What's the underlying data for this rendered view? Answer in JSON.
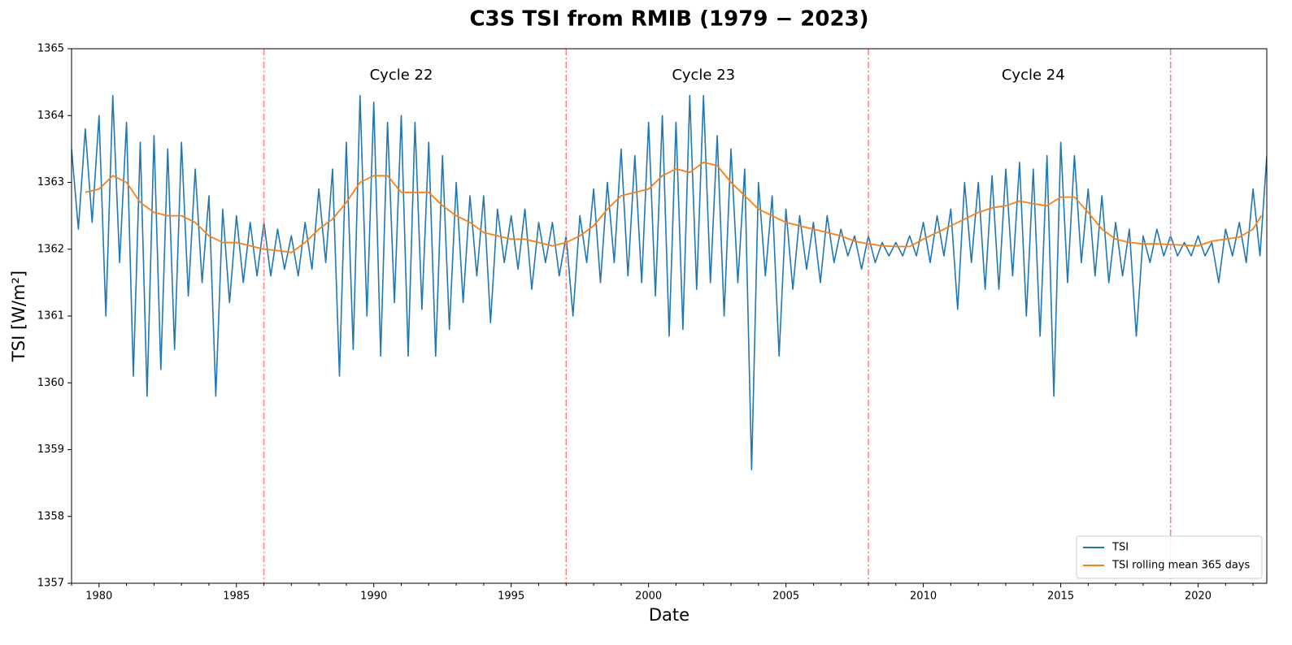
{
  "chart_data": {
    "type": "line",
    "title": "C3S TSI from RMIB (1979 − 2023)",
    "x_label": "Date",
    "y_label": "TSI [W/m²]",
    "xlim": [
      1979.0,
      2022.5
    ],
    "ylim": [
      1357,
      1365
    ],
    "xticks": [
      1980,
      1985,
      1990,
      1995,
      2000,
      2005,
      2010,
      2015,
      2020
    ],
    "xminorticks": [
      1979,
      1981,
      1982,
      1983,
      1984,
      1986,
      1987,
      1988,
      1989,
      1991,
      1992,
      1993,
      1994,
      1996,
      1997,
      1998,
      1999,
      2001,
      2002,
      2003,
      2004,
      2006,
      2007,
      2008,
      2009,
      2011,
      2012,
      2013,
      2014,
      2016,
      2017,
      2018,
      2019,
      2021,
      2022
    ],
    "yticks": [
      1357,
      1358,
      1359,
      1360,
      1361,
      1362,
      1363,
      1364,
      1365
    ],
    "legend_position": "lower right",
    "vlines": [
      1986,
      1997,
      2008,
      2019
    ],
    "vline_color": "#ff7f7f",
    "annotations": [
      {
        "text": "Cycle 22",
        "x": 1991,
        "y": 1364.6
      },
      {
        "text": "Cycle 23",
        "x": 2002,
        "y": 1364.6
      },
      {
        "text": "Cycle 24",
        "x": 2014,
        "y": 1364.6
      }
    ],
    "series": [
      {
        "name": "TSI",
        "color": "#1f77b4",
        "x": [
          1979,
          1979.25,
          1979.5,
          1979.75,
          1980,
          1980.25,
          1980.5,
          1980.75,
          1981,
          1981.25,
          1981.5,
          1981.75,
          1982,
          1982.25,
          1982.5,
          1982.75,
          1983,
          1983.25,
          1983.5,
          1983.75,
          1984,
          1984.25,
          1984.5,
          1984.75,
          1985,
          1985.25,
          1985.5,
          1985.75,
          1986,
          1986.25,
          1986.5,
          1986.75,
          1987,
          1987.25,
          1987.5,
          1987.75,
          1988,
          1988.25,
          1988.5,
          1988.75,
          1989,
          1989.25,
          1989.5,
          1989.75,
          1990,
          1990.25,
          1990.5,
          1990.75,
          1991,
          1991.25,
          1991.5,
          1991.75,
          1992,
          1992.25,
          1992.5,
          1992.75,
          1993,
          1993.25,
          1993.5,
          1993.75,
          1994,
          1994.25,
          1994.5,
          1994.75,
          1995,
          1995.25,
          1995.5,
          1995.75,
          1996,
          1996.25,
          1996.5,
          1996.75,
          1997,
          1997.25,
          1997.5,
          1997.75,
          1998,
          1998.25,
          1998.5,
          1998.75,
          1999,
          1999.25,
          1999.5,
          1999.75,
          2000,
          2000.25,
          2000.5,
          2000.75,
          2001,
          2001.25,
          2001.5,
          2001.75,
          2002,
          2002.25,
          2002.5,
          2002.75,
          2003,
          2003.25,
          2003.5,
          2003.75,
          2004,
          2004.25,
          2004.5,
          2004.75,
          2005,
          2005.25,
          2005.5,
          2005.75,
          2006,
          2006.25,
          2006.5,
          2006.75,
          2007,
          2007.25,
          2007.5,
          2007.75,
          2008,
          2008.25,
          2008.5,
          2008.75,
          2009,
          2009.25,
          2009.5,
          2009.75,
          2010,
          2010.25,
          2010.5,
          2010.75,
          2011,
          2011.25,
          2011.5,
          2011.75,
          2012,
          2012.25,
          2012.5,
          2012.75,
          2013,
          2013.25,
          2013.5,
          2013.75,
          2014,
          2014.25,
          2014.5,
          2014.75,
          2015,
          2015.25,
          2015.5,
          2015.75,
          2016,
          2016.25,
          2016.5,
          2016.75,
          2017,
          2017.25,
          2017.5,
          2017.75,
          2018,
          2018.25,
          2018.5,
          2018.75,
          2019,
          2019.25,
          2019.5,
          2019.75,
          2020,
          2020.25,
          2020.5,
          2020.75,
          2021,
          2021.25,
          2021.5,
          2021.75,
          2022,
          2022.25,
          2022.5
        ],
        "values": [
          1363.5,
          1362.3,
          1363.8,
          1362.4,
          1364.0,
          1361.0,
          1364.3,
          1361.8,
          1363.9,
          1360.1,
          1363.6,
          1359.8,
          1363.7,
          1360.2,
          1363.5,
          1360.5,
          1363.6,
          1361.3,
          1363.2,
          1361.5,
          1362.8,
          1359.8,
          1362.6,
          1361.2,
          1362.5,
          1361.5,
          1362.4,
          1361.6,
          1362.4,
          1361.6,
          1362.3,
          1361.7,
          1362.2,
          1361.6,
          1362.4,
          1361.7,
          1362.9,
          1361.8,
          1363.2,
          1360.1,
          1363.6,
          1360.5,
          1364.3,
          1361.0,
          1364.2,
          1360.4,
          1363.9,
          1361.2,
          1364.0,
          1360.4,
          1363.9,
          1361.1,
          1363.6,
          1360.4,
          1363.4,
          1360.8,
          1363.0,
          1361.2,
          1362.8,
          1361.6,
          1362.8,
          1360.9,
          1362.6,
          1361.8,
          1362.5,
          1361.7,
          1362.6,
          1361.4,
          1362.4,
          1361.8,
          1362.4,
          1361.6,
          1362.2,
          1361.0,
          1362.5,
          1361.8,
          1362.9,
          1361.5,
          1363.0,
          1361.8,
          1363.5,
          1361.6,
          1363.4,
          1361.5,
          1363.9,
          1361.3,
          1364.0,
          1360.7,
          1363.9,
          1360.8,
          1364.3,
          1361.4,
          1364.3,
          1361.5,
          1363.7,
          1361.0,
          1363.5,
          1361.5,
          1363.2,
          1358.7,
          1363.0,
          1361.6,
          1362.8,
          1360.4,
          1362.6,
          1361.4,
          1362.5,
          1361.7,
          1362.4,
          1361.5,
          1362.5,
          1361.8,
          1362.3,
          1361.9,
          1362.2,
          1361.7,
          1362.2,
          1361.8,
          1362.1,
          1361.9,
          1362.1,
          1361.9,
          1362.2,
          1361.9,
          1362.4,
          1361.8,
          1362.5,
          1361.9,
          1362.6,
          1361.1,
          1363.0,
          1361.8,
          1363.0,
          1361.4,
          1363.1,
          1361.4,
          1363.2,
          1361.6,
          1363.3,
          1361.0,
          1363.2,
          1360.7,
          1363.4,
          1359.8,
          1363.6,
          1361.5,
          1363.4,
          1361.8,
          1362.9,
          1361.6,
          1362.8,
          1361.5,
          1362.4,
          1361.6,
          1362.3,
          1360.7,
          1362.2,
          1361.8,
          1362.3,
          1361.9,
          1362.2,
          1361.9,
          1362.1,
          1361.9,
          1362.2,
          1361.9,
          1362.1,
          1361.5,
          1362.3,
          1361.9,
          1362.4,
          1361.8,
          1362.9,
          1361.9,
          1363.4
        ]
      },
      {
        "name": "TSI rolling mean 365 days",
        "color": "#ff7f0e",
        "x": [
          1979.5,
          1980,
          1980.5,
          1981,
          1981.5,
          1982,
          1982.5,
          1983,
          1983.5,
          1984,
          1984.5,
          1985,
          1985.5,
          1986,
          1986.5,
          1987,
          1987.5,
          1988,
          1988.5,
          1989,
          1989.5,
          1990,
          1990.5,
          1991,
          1991.5,
          1992,
          1992.5,
          1993,
          1993.5,
          1994,
          1994.5,
          1995,
          1995.5,
          1996,
          1996.5,
          1997,
          1997.5,
          1998,
          1998.5,
          1999,
          1999.5,
          2000,
          2000.5,
          2001,
          2001.5,
          2002,
          2002.5,
          2003,
          2003.5,
          2004,
          2004.5,
          2005,
          2005.5,
          2006,
          2006.5,
          2007,
          2007.5,
          2008,
          2008.5,
          2009,
          2009.5,
          2010,
          2010.5,
          2011,
          2011.5,
          2012,
          2012.5,
          2013,
          2013.5,
          2014,
          2014.5,
          2015,
          2015.5,
          2016,
          2016.5,
          2017,
          2017.5,
          2018,
          2018.5,
          2019,
          2019.5,
          2020,
          2020.5,
          2021,
          2021.5,
          2022,
          2022.3
        ],
        "values": [
          1362.85,
          1362.9,
          1363.1,
          1363.0,
          1362.7,
          1362.55,
          1362.5,
          1362.5,
          1362.4,
          1362.2,
          1362.1,
          1362.1,
          1362.05,
          1362.0,
          1361.98,
          1361.95,
          1362.1,
          1362.3,
          1362.45,
          1362.7,
          1363.0,
          1363.1,
          1363.1,
          1362.85,
          1362.85,
          1362.85,
          1362.65,
          1362.5,
          1362.4,
          1362.25,
          1362.2,
          1362.15,
          1362.15,
          1362.1,
          1362.05,
          1362.1,
          1362.2,
          1362.35,
          1362.6,
          1362.8,
          1362.85,
          1362.9,
          1363.1,
          1363.2,
          1363.15,
          1363.3,
          1363.25,
          1363.0,
          1362.8,
          1362.6,
          1362.5,
          1362.4,
          1362.35,
          1362.3,
          1362.25,
          1362.2,
          1362.12,
          1362.08,
          1362.05,
          1362.04,
          1362.04,
          1362.15,
          1362.25,
          1362.35,
          1362.45,
          1362.55,
          1362.62,
          1362.65,
          1362.72,
          1362.68,
          1362.65,
          1362.78,
          1362.78,
          1362.55,
          1362.3,
          1362.15,
          1362.1,
          1362.08,
          1362.08,
          1362.07,
          1362.06,
          1362.05,
          1362.12,
          1362.15,
          1362.18,
          1362.3,
          1362.5
        ]
      }
    ]
  }
}
